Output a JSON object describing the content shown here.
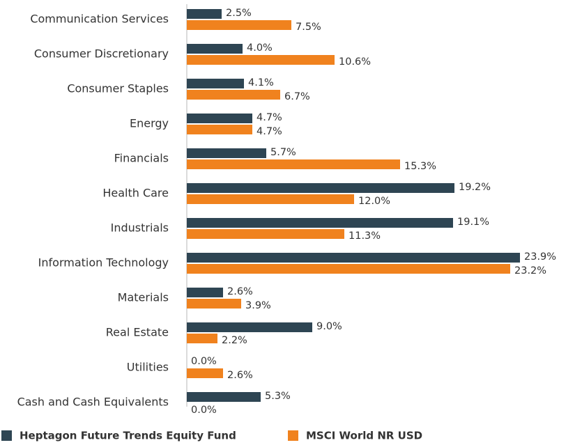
{
  "chart_data": {
    "type": "bar",
    "orientation": "horizontal",
    "categories": [
      "Communication Services",
      "Consumer Discretionary",
      "Consumer Staples",
      "Energy",
      "Financials",
      "Health Care",
      "Industrials",
      "Information Technology",
      "Materials",
      "Real Estate",
      "Utilities",
      "Cash and Cash Equivalents"
    ],
    "series": [
      {
        "name": "Heptagon Future Trends Equity Fund",
        "color": "#2e4553",
        "values": [
          2.5,
          4.0,
          4.1,
          4.7,
          5.7,
          19.2,
          19.1,
          23.9,
          2.6,
          9.0,
          0.0,
          5.3
        ],
        "value_labels": [
          "2.5%",
          "4.0%",
          "4.1%",
          "4.7%",
          "5.7%",
          "19.2%",
          "19.1%",
          "23.9%",
          "2.6%",
          "9.0%",
          "0.0%",
          "5.3%"
        ]
      },
      {
        "name": "MSCI World NR USD",
        "color": "#f0821e",
        "values": [
          7.5,
          10.6,
          6.7,
          4.7,
          15.3,
          12.0,
          11.3,
          23.2,
          3.9,
          2.2,
          2.6,
          0.0
        ],
        "value_labels": [
          "7.5%",
          "10.6%",
          "6.7%",
          "4.7%",
          "15.3%",
          "12.0%",
          "11.3%",
          "23.2%",
          "3.9%",
          "2.2%",
          "2.6%",
          "0.0%"
        ]
      }
    ],
    "legend": "bottom-left"
  }
}
